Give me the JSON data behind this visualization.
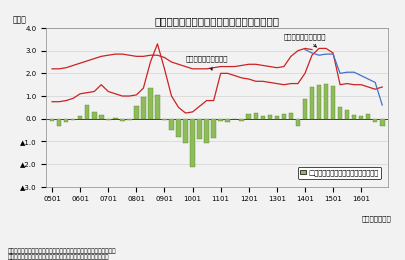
{
  "title": "実績に連動する家計・企業の予想物価上昇率",
  "ylabel_left": "（％）",
  "xlabel_right": "（年・四半期）",
  "note_line1": "（注）家計の予想物価上昇率は「消費動向調査（内閣府）」から試算",
  "note_line2": "　　企業の物価見通しは日銀短観の企業の物価見通し（１年後）",
  "ylim": [
    -3.0,
    4.0
  ],
  "yticks": [
    -3.0,
    -2.0,
    -1.0,
    0.0,
    1.0,
    2.0,
    3.0,
    4.0
  ],
  "ytick_labels": [
    "▲3.0",
    "▲2.0",
    "▲1.0",
    "0.0",
    "1.0",
    "2.0",
    "3.0",
    "4.0"
  ],
  "bar_values": [
    -0.1,
    -0.3,
    -0.15,
    -0.05,
    0.1,
    0.6,
    0.3,
    0.15,
    -0.05,
    0.05,
    -0.1,
    -0.05,
    0.55,
    0.95,
    1.35,
    1.05,
    -0.05,
    -0.5,
    -0.8,
    -1.05,
    -2.15,
    -0.9,
    -1.05,
    -0.85,
    -0.1,
    -0.15,
    0.0,
    -0.1,
    0.2,
    0.25,
    0.1,
    0.15,
    0.1,
    0.2,
    0.25,
    -0.3,
    0.85,
    1.4,
    1.5,
    1.55,
    1.45,
    0.5,
    0.4,
    0.15,
    0.1,
    0.2,
    -0.15,
    -0.3
  ],
  "household_y": [
    0.75,
    0.75,
    0.8,
    0.9,
    1.1,
    1.15,
    1.2,
    1.5,
    1.2,
    1.1,
    1.0,
    1.0,
    1.05,
    1.35,
    2.5,
    3.3,
    2.2,
    1.0,
    0.5,
    0.25,
    0.3,
    0.55,
    0.8,
    0.8,
    2.0,
    2.0,
    1.9,
    1.8,
    1.75,
    1.65,
    1.65,
    1.6,
    1.55,
    1.5,
    1.55,
    1.55,
    2.0,
    2.8,
    3.1,
    3.1,
    2.9,
    1.5,
    1.55,
    1.5,
    1.5,
    1.4,
    1.3,
    1.4
  ],
  "enterprise_y_red": [
    2.2,
    2.2,
    2.25,
    2.35,
    2.45,
    2.55,
    2.65,
    2.75,
    2.8,
    2.85,
    2.85,
    2.8,
    2.75,
    2.75,
    2.8,
    2.8,
    2.7,
    2.5,
    2.4,
    2.3,
    2.2,
    2.2,
    2.2,
    2.25,
    2.3,
    2.3,
    2.3,
    2.35,
    2.4,
    2.4,
    2.35,
    2.3,
    2.25,
    2.3,
    2.75,
    3.0,
    3.1,
    3.05
  ],
  "enterprise_y_blue": [
    3.05,
    2.9,
    2.8,
    2.85,
    2.85,
    2.0,
    2.05,
    2.05,
    1.9,
    1.75,
    1.6,
    0.6
  ],
  "enterprise_red_start": 0,
  "enterprise_red_end": 37,
  "enterprise_blue_start": 36,
  "bar_color": "#8FBC5A",
  "bar_edge_color": "#5A8A2A",
  "household_color": "#CC2222",
  "enterprise_color_red": "#CC2222",
  "enterprise_color_blue": "#4472C4",
  "bg_color": "#F2F2F2",
  "grid_color": "#CCCCCC",
  "legend_label": "□消費者物価（生鮮食品を除く総合）",
  "annot_household": "家計の予想物価上昇率",
  "annot_enterprise": "企業の予想物価上昇率",
  "xtick_positions": [
    0,
    4,
    8,
    12,
    16,
    20,
    24,
    28,
    32,
    36,
    40,
    44
  ],
  "xtick_labels": [
    "0501",
    "0601",
    "0701",
    "0801",
    "0901",
    "1001",
    "1101",
    "1201",
    "1301",
    "1401",
    "1501",
    "1601"
  ]
}
